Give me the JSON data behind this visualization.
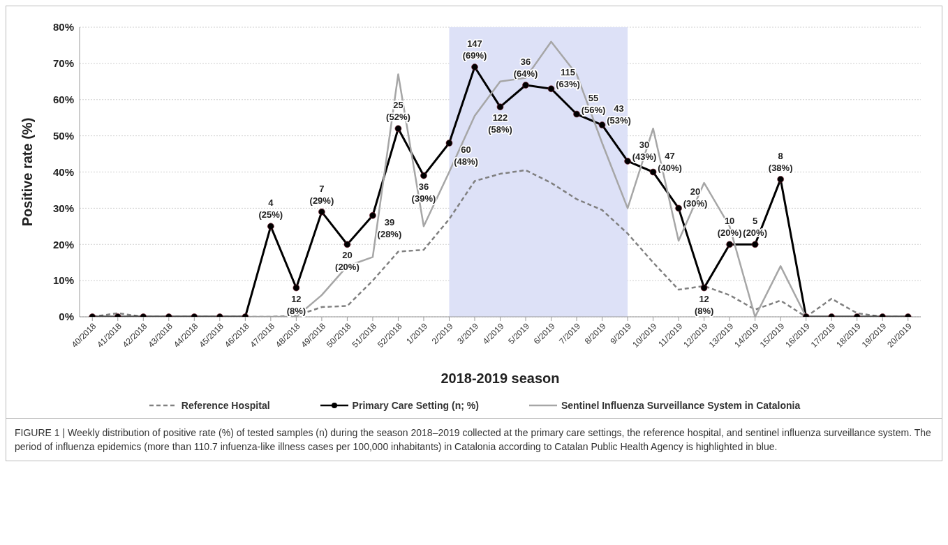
{
  "chart_data": {
    "type": "line",
    "xlabel": "2018-2019 season",
    "ylabel": "Positive rate (%)",
    "categories": [
      "40/2018",
      "41/2018",
      "42/2018",
      "43/2018",
      "44/2018",
      "45/2018",
      "46/2018",
      "47/2018",
      "48/2018",
      "49/2018",
      "50/2018",
      "51/2018",
      "52/2018",
      "1/2019",
      "2/2019",
      "3/2019",
      "4/2019",
      "5/2019",
      "6/2019",
      "7/2019",
      "8/2019",
      "9/2019",
      "10/2019",
      "11/2019",
      "12/2019",
      "13/2019",
      "14/2019",
      "15/2019",
      "16/2019",
      "17/2019",
      "18/2019",
      "19/2019",
      "20/2019"
    ],
    "series": [
      {
        "name": "Reference Hospital",
        "color": "#808080",
        "line_style": "dashed",
        "marker": "none",
        "values": [
          0,
          1,
          0,
          0,
          0,
          0,
          0,
          0,
          0.3,
          2.7,
          3,
          10,
          18,
          18.5,
          27,
          37.5,
          39.5,
          40.5,
          37,
          32.5,
          29.5,
          23,
          15,
          7.5,
          8.5,
          6,
          2,
          4.5,
          0,
          5,
          1,
          0,
          0
        ]
      },
      {
        "name": "Primary Care Setting (n; %)",
        "color": "#000000",
        "line_style": "solid",
        "marker": "circle",
        "values": [
          0,
          0,
          0,
          0,
          0,
          0,
          0,
          25,
          8,
          29,
          20,
          28,
          52,
          39,
          48,
          69,
          58,
          64,
          63,
          56,
          53,
          43,
          40,
          30,
          8,
          20,
          20,
          38,
          0,
          0,
          0,
          0,
          0
        ],
        "value_labels": [
          null,
          null,
          null,
          null,
          null,
          null,
          null,
          "4\n(25%)",
          "12\n(8%)",
          "7\n(29%)",
          "20\n(20%)",
          "39\n(28%)",
          "25\n(52%)",
          "36\n(39%)",
          "60\n(48%)",
          "147\n(69%)",
          "122\n(58%)",
          "36\n(64%)",
          "115\n(63%)",
          "55\n(56%)",
          "43\n(53%)",
          "30\n(43%)",
          "47\n(40%)",
          "20\n(30%)",
          "12\n(8%)",
          "10\n(20%)",
          "5\n(20%)",
          "8\n(38%)",
          null,
          null,
          null,
          null,
          null
        ]
      },
      {
        "name": "Sentinel Influenza Surveillance System in Catalonia",
        "color": "#a6a6a6",
        "line_style": "solid",
        "marker": "none",
        "values": [
          null,
          null,
          null,
          null,
          null,
          null,
          0,
          0,
          0,
          6,
          14,
          16.5,
          67,
          25,
          40,
          55.5,
          65,
          66,
          76,
          67,
          48,
          30,
          52,
          21,
          37,
          25,
          0,
          14,
          0,
          null,
          null,
          null,
          null
        ]
      }
    ],
    "ylim": [
      0,
      80
    ],
    "yticks": [
      {
        "value": 0,
        "label": "0%"
      },
      {
        "value": 10,
        "label": "10%"
      },
      {
        "value": 20,
        "label": "20%"
      },
      {
        "value": 30,
        "label": "30%"
      },
      {
        "value": 40,
        "label": "40%"
      },
      {
        "value": 50,
        "label": "50%"
      },
      {
        "value": 60,
        "label": "60%"
      },
      {
        "value": 70,
        "label": "70%"
      },
      {
        "value": 80,
        "label": "80%"
      }
    ],
    "grid": "y",
    "legend": "bottom",
    "bands": [
      {
        "axis": "x",
        "from": "2/2019",
        "to": "9/2019",
        "color": "#dde1f7"
      }
    ],
    "annotations": [
      "FIGURE 1 | Weekly distribution of positive rate (%) of tested samples (n) during the season 2018–2019 collected at the primary care settings, the reference hospital, and sentinel influenza surveillance system. The period of influenza epidemics (more than 110.7 infuenza-like illness cases per 100,000 inhabitants) in Catalonia according to Catalan Public Health Agency is highlighted in blue."
    ]
  }
}
